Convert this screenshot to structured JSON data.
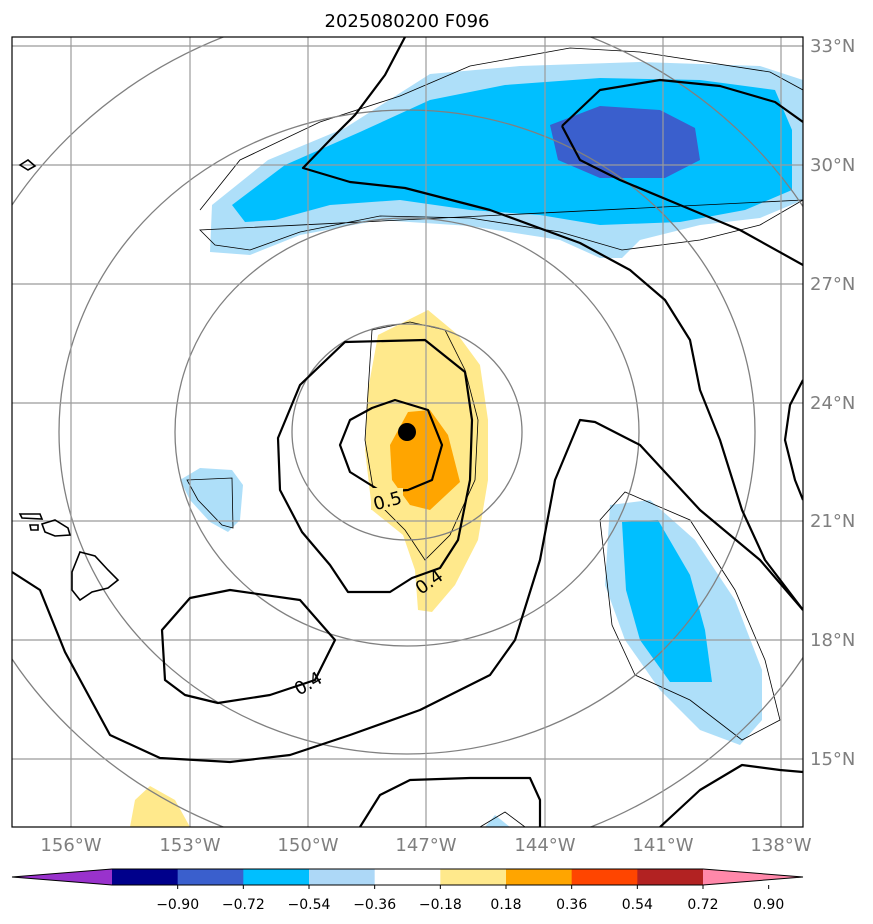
{
  "title": "2025080200 F096",
  "lat_labels": [
    "33°N",
    "30°N",
    "27°N",
    "24°N",
    "21°N",
    "18°N",
    "15°N"
  ],
  "lon_labels": [
    "156°W",
    "153°W",
    "150°W",
    "147°W",
    "144°W",
    "141°W",
    "138°W"
  ],
  "contour_labels": [
    "0.5",
    "0.4",
    "0.4"
  ],
  "colorbar": {
    "tick_labels": [
      "−0.90",
      "−0.72",
      "−0.54",
      "−0.36",
      "−0.18",
      "0.18",
      "0.36",
      "0.54",
      "0.72",
      "0.90"
    ],
    "colors": [
      "#9932cc",
      "#00008b",
      "#3a5fcd",
      "#00bfff",
      "#add8f7",
      "#ffffff",
      "#ffe98c",
      "#ffa500",
      "#ff4500",
      "#b22222",
      "#ff88aa"
    ]
  },
  "storm_center": {
    "lat": 23.2,
    "lon": -147.5
  },
  "palette": {
    "light_blue": "#aedff9",
    "mid_blue": "#00bfff",
    "dark_blue": "#3a5fcd",
    "light_yellow": "#ffe98c",
    "orange": "#ffa500",
    "grid": "#9b9b9b",
    "ring": "#808080"
  }
}
